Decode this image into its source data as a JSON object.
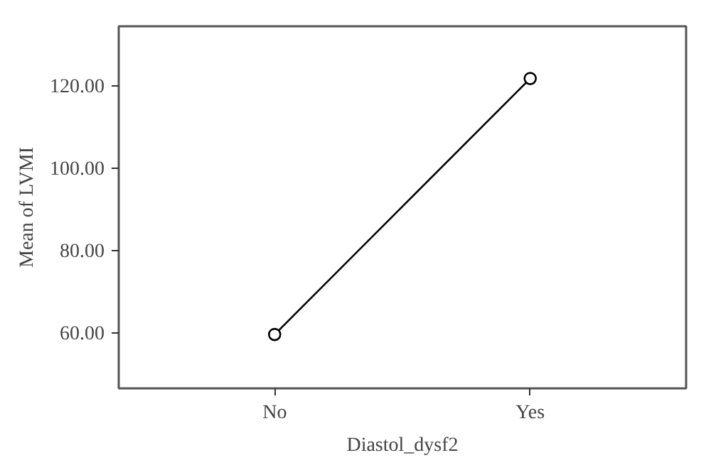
{
  "chart_data": {
    "type": "line",
    "xlabel": "Diastol_dysf2",
    "ylabel": "Mean of LVMI",
    "categories": [
      "No",
      "Yes"
    ],
    "series": [
      {
        "color": "#000000",
        "values": [
          59.5,
          121.7
        ]
      }
    ],
    "ylim": [
      46.4,
      134.4
    ],
    "yticks": [
      {
        "value": 60,
        "label": "60.00"
      },
      {
        "value": 80,
        "label": "80.00"
      },
      {
        "value": 100,
        "label": "100.00"
      },
      {
        "value": 120,
        "label": "120.00"
      }
    ],
    "grid": false,
    "marker": "circle",
    "line_style": "solid"
  }
}
